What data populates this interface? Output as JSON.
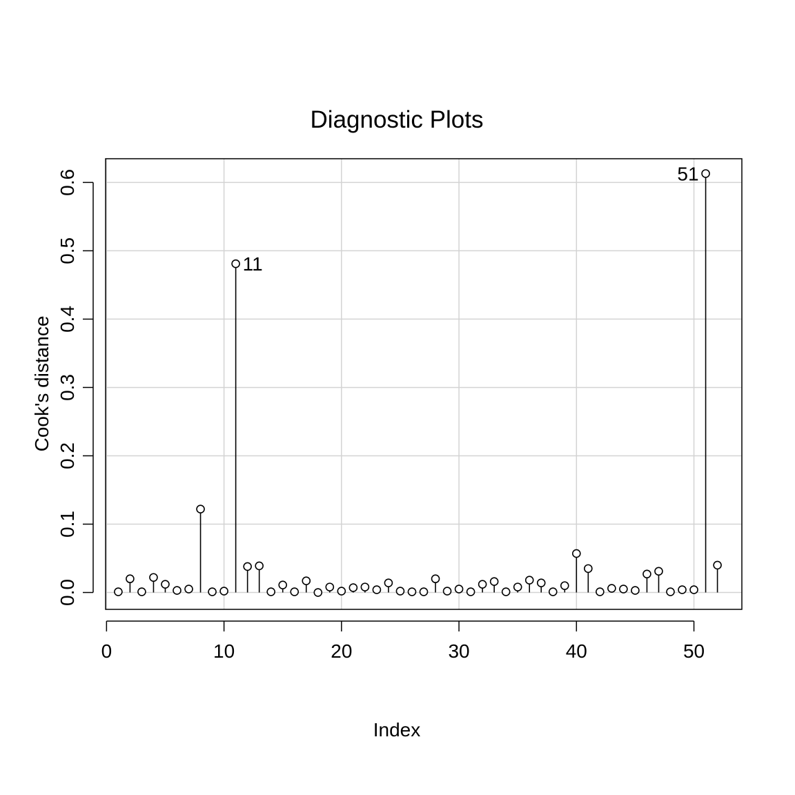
{
  "chart_data": {
    "type": "scatter",
    "title": "Diagnostic Plots",
    "xlabel": "Index",
    "ylabel": "Cook's distance",
    "xlim": [
      -0.08,
      54.08
    ],
    "ylim": [
      -0.0247,
      0.6347
    ],
    "xticks": [
      0,
      10,
      20,
      30,
      40,
      50
    ],
    "yticks": [
      0.0,
      0.1,
      0.2,
      0.3,
      0.4,
      0.5,
      0.6
    ],
    "ytick_labels": [
      "0.0",
      "0.1",
      "0.2",
      "0.3",
      "0.4",
      "0.5",
      "0.6"
    ],
    "grid": true,
    "style": "points-with-vertical-lines",
    "x": [
      1,
      2,
      3,
      4,
      5,
      6,
      7,
      8,
      9,
      10,
      11,
      12,
      13,
      14,
      15,
      16,
      17,
      18,
      19,
      20,
      21,
      22,
      23,
      24,
      25,
      26,
      27,
      28,
      29,
      30,
      31,
      32,
      33,
      34,
      35,
      36,
      37,
      38,
      39,
      40,
      41,
      42,
      43,
      44,
      45,
      46,
      47,
      48,
      49,
      50,
      51,
      52
    ],
    "values": [
      0.001,
      0.02,
      0.001,
      0.022,
      0.012,
      0.003,
      0.005,
      0.122,
      0.001,
      0.002,
      0.481,
      0.038,
      0.039,
      0.001,
      0.011,
      0.001,
      0.017,
      0.0,
      0.008,
      0.002,
      0.007,
      0.008,
      0.004,
      0.014,
      0.002,
      0.001,
      0.001,
      0.02,
      0.002,
      0.005,
      0.001,
      0.012,
      0.016,
      0.001,
      0.008,
      0.018,
      0.014,
      0.001,
      0.01,
      0.057,
      0.035,
      0.001,
      0.006,
      0.005,
      0.003,
      0.027,
      0.031,
      0.001,
      0.004,
      0.004,
      0.613,
      0.04
    ],
    "annotations": [
      {
        "x": 11,
        "label": "11",
        "side": "right"
      },
      {
        "x": 51,
        "label": "51",
        "side": "left"
      }
    ]
  }
}
